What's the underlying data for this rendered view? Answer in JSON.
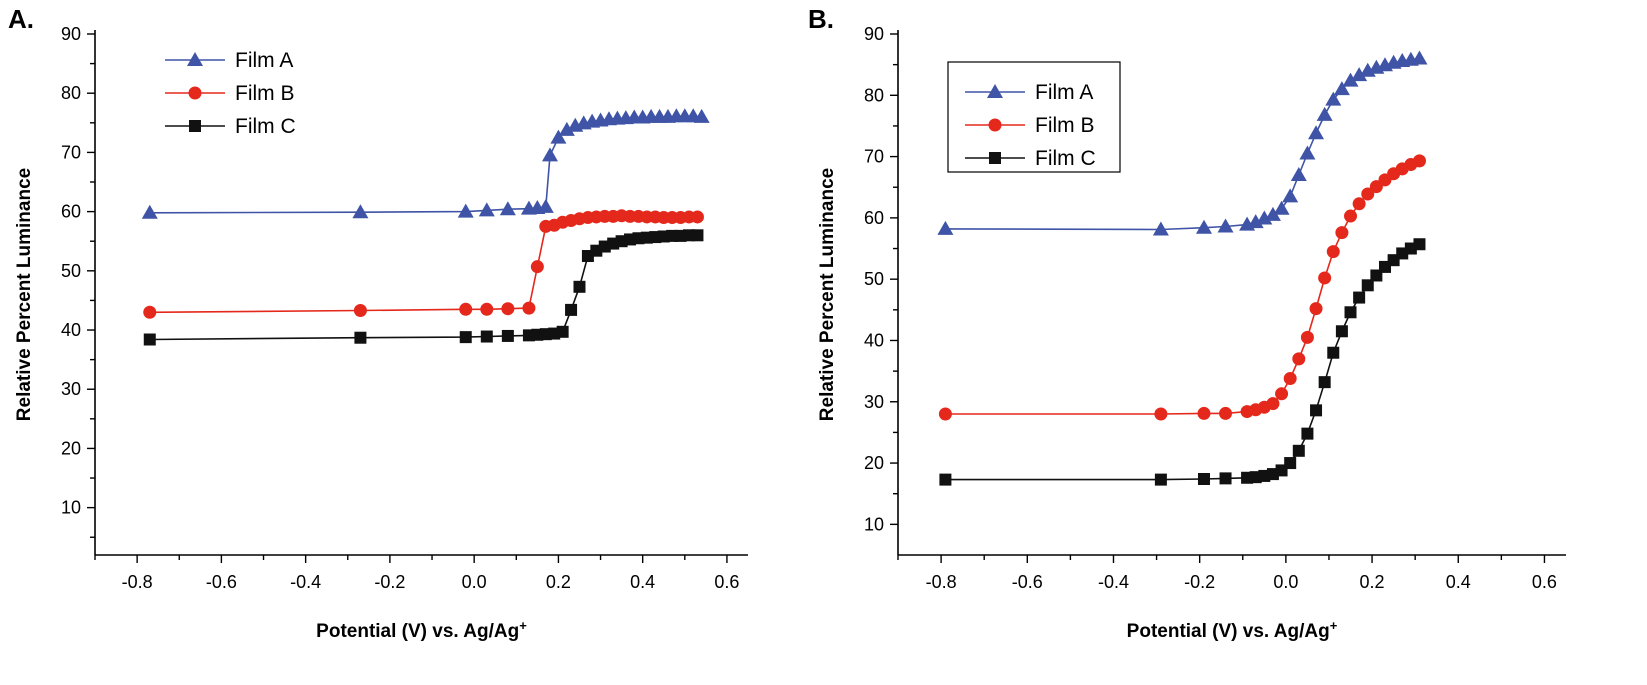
{
  "chart_data": [
    {
      "type": "line",
      "panel_label": "A.",
      "xlabel": "Potential (V) vs. Ag/Ag",
      "xlabel_sup": "+",
      "ylabel": "Relative Percent Luminance",
      "xlim": [
        -0.9,
        0.65
      ],
      "ylim": [
        2,
        90
      ],
      "xticks": [
        -0.8,
        -0.6,
        -0.4,
        -0.2,
        0.0,
        0.2,
        0.4,
        0.6
      ],
      "xtick_labels": [
        "-0.8",
        "-0.6",
        "-0.4",
        "-0.2",
        "0.0",
        "0.2",
        "0.4",
        "0.6"
      ],
      "yticks": [
        10,
        20,
        30,
        40,
        50,
        60,
        70,
        80,
        90
      ],
      "ytick_labels": [
        "10",
        "20",
        "30",
        "40",
        "50",
        "60",
        "70",
        "80",
        "90"
      ],
      "legend": {
        "placement": "top-left",
        "frame": false
      },
      "series": [
        {
          "name": "Film A",
          "color": "#3f54a6",
          "marker": "triangle",
          "x": [
            -0.77,
            -0.27,
            -0.02,
            0.03,
            0.08,
            0.13,
            0.15,
            0.17,
            0.18,
            0.2,
            0.22,
            0.24,
            0.26,
            0.28,
            0.3,
            0.32,
            0.34,
            0.36,
            0.38,
            0.4,
            0.42,
            0.44,
            0.46,
            0.48,
            0.5,
            0.52,
            0.54
          ],
          "y": [
            59.8,
            59.9,
            60.0,
            60.2,
            60.4,
            60.5,
            60.6,
            60.8,
            69.5,
            72.5,
            73.8,
            74.5,
            74.9,
            75.2,
            75.4,
            75.6,
            75.7,
            75.8,
            75.9,
            75.9,
            76.0,
            76.0,
            76.0,
            76.1,
            76.1,
            76.1,
            76.0
          ]
        },
        {
          "name": "Film B",
          "color": "#e5281c",
          "marker": "circle",
          "x": [
            -0.77,
            -0.27,
            -0.02,
            0.03,
            0.08,
            0.13,
            0.15,
            0.17,
            0.19,
            0.21,
            0.23,
            0.25,
            0.27,
            0.29,
            0.31,
            0.33,
            0.35,
            0.37,
            0.39,
            0.41,
            0.43,
            0.45,
            0.47,
            0.49,
            0.51,
            0.53
          ],
          "y": [
            43.0,
            43.3,
            43.5,
            43.5,
            43.6,
            43.7,
            50.7,
            57.5,
            57.7,
            58.2,
            58.5,
            58.8,
            59.0,
            59.1,
            59.2,
            59.2,
            59.3,
            59.2,
            59.2,
            59.1,
            59.1,
            59.0,
            59.0,
            59.0,
            59.1,
            59.1
          ]
        },
        {
          "name": "Film C",
          "color": "#111111",
          "marker": "square",
          "x": [
            -0.77,
            -0.27,
            -0.02,
            0.03,
            0.08,
            0.13,
            0.15,
            0.17,
            0.19,
            0.21,
            0.23,
            0.25,
            0.27,
            0.29,
            0.31,
            0.33,
            0.35,
            0.37,
            0.39,
            0.41,
            0.43,
            0.45,
            0.47,
            0.49,
            0.51,
            0.53
          ],
          "y": [
            38.4,
            38.7,
            38.8,
            38.9,
            39.0,
            39.1,
            39.2,
            39.3,
            39.4,
            39.7,
            43.4,
            47.3,
            52.5,
            53.4,
            54.1,
            54.6,
            55.0,
            55.3,
            55.5,
            55.6,
            55.7,
            55.8,
            55.9,
            55.9,
            56.0,
            56.0
          ]
        }
      ]
    },
    {
      "type": "line",
      "panel_label": "B.",
      "xlabel": "Potential (V) vs. Ag/Ag",
      "xlabel_sup": "+",
      "ylabel": "Relative Percent Luminance",
      "xlim": [
        -0.9,
        0.65
      ],
      "ylim": [
        5,
        90
      ],
      "xticks": [
        -0.8,
        -0.6,
        -0.4,
        -0.2,
        0.0,
        0.2,
        0.4,
        0.6
      ],
      "xtick_labels": [
        "-0.8",
        "-0.6",
        "-0.4",
        "-0.2",
        "0.0",
        "0.2",
        "0.4",
        "0.6"
      ],
      "yticks": [
        10,
        20,
        30,
        40,
        50,
        60,
        70,
        80,
        90
      ],
      "ytick_labels": [
        "10",
        "20",
        "30",
        "40",
        "50",
        "60",
        "70",
        "80",
        "90"
      ],
      "legend": {
        "placement": "top-left",
        "frame": true
      },
      "series": [
        {
          "name": "Film A",
          "color": "#3f54a6",
          "marker": "triangle",
          "x": [
            -0.79,
            -0.29,
            -0.19,
            -0.14,
            -0.09,
            -0.07,
            -0.05,
            -0.03,
            -0.01,
            0.01,
            0.03,
            0.05,
            0.07,
            0.09,
            0.11,
            0.13,
            0.15,
            0.17,
            0.19,
            0.21,
            0.23,
            0.25,
            0.27,
            0.29,
            0.31
          ],
          "y": [
            58.2,
            58.1,
            58.4,
            58.6,
            58.9,
            59.3,
            59.9,
            60.5,
            61.5,
            63.5,
            67.0,
            70.5,
            73.8,
            76.8,
            79.3,
            81.0,
            82.4,
            83.3,
            84.0,
            84.5,
            84.9,
            85.3,
            85.6,
            85.8,
            86.0
          ]
        },
        {
          "name": "Film B",
          "color": "#e5281c",
          "marker": "circle",
          "x": [
            -0.79,
            -0.29,
            -0.19,
            -0.14,
            -0.09,
            -0.07,
            -0.05,
            -0.03,
            -0.01,
            0.01,
            0.03,
            0.05,
            0.07,
            0.09,
            0.11,
            0.13,
            0.15,
            0.17,
            0.19,
            0.21,
            0.23,
            0.25,
            0.27,
            0.29,
            0.31
          ],
          "y": [
            28.0,
            28.0,
            28.1,
            28.1,
            28.4,
            28.7,
            29.1,
            29.7,
            31.3,
            33.8,
            37.0,
            40.5,
            45.2,
            50.2,
            54.5,
            57.6,
            60.3,
            62.3,
            63.9,
            65.1,
            66.2,
            67.2,
            68.0,
            68.7,
            69.3
          ]
        },
        {
          "name": "Film C",
          "color": "#111111",
          "marker": "square",
          "x": [
            -0.79,
            -0.29,
            -0.19,
            -0.14,
            -0.09,
            -0.07,
            -0.05,
            -0.03,
            -0.01,
            0.01,
            0.03,
            0.05,
            0.07,
            0.09,
            0.11,
            0.13,
            0.15,
            0.17,
            0.19,
            0.21,
            0.23,
            0.25,
            0.27,
            0.29,
            0.31
          ],
          "y": [
            17.3,
            17.3,
            17.4,
            17.5,
            17.6,
            17.7,
            17.9,
            18.2,
            18.8,
            20.0,
            22.0,
            24.8,
            28.6,
            33.2,
            38.0,
            41.5,
            44.6,
            47.0,
            49.0,
            50.6,
            52.0,
            53.1,
            54.2,
            55.0,
            55.7
          ]
        }
      ]
    }
  ]
}
